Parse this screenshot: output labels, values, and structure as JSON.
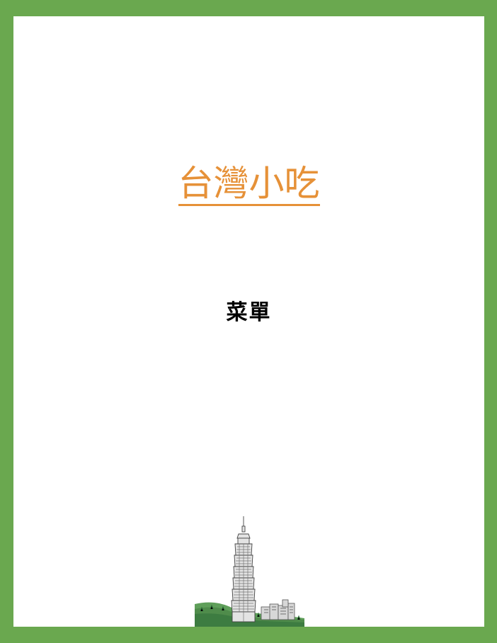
{
  "document": {
    "title": "台灣小吃",
    "subtitle": "菜單"
  },
  "illustration": {
    "icon": "taipei-101-tower-illustration"
  },
  "colors": {
    "border": "#6aa84f",
    "title": "#e69138",
    "page": "#ffffff",
    "subtitle": "#000000"
  }
}
